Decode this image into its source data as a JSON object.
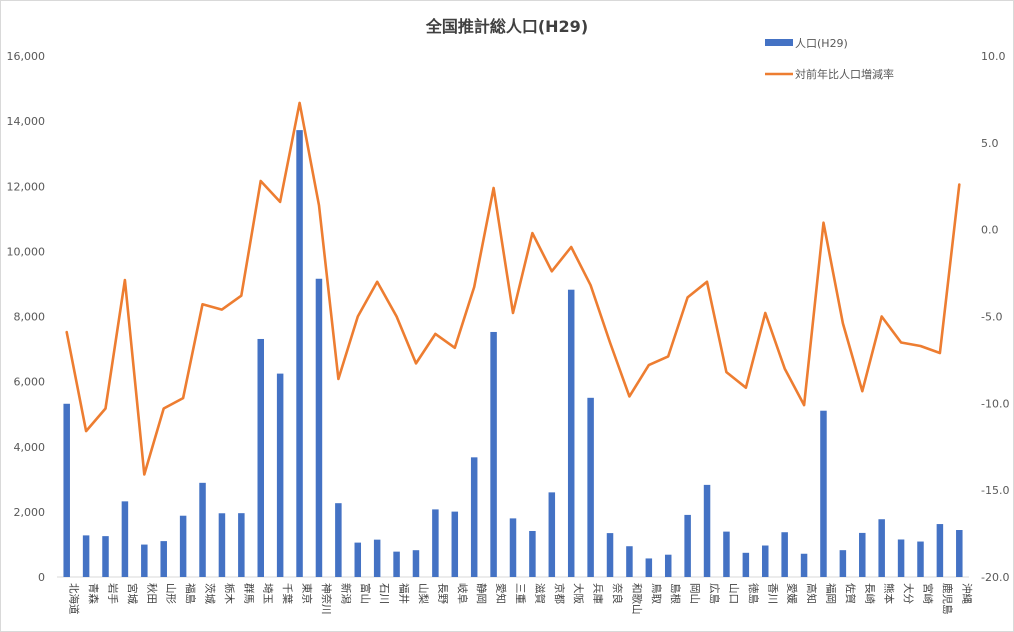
{
  "chart_data": {
    "type": "bar+line",
    "title": "全国推計総人口(H29)",
    "categories": [
      "北海道",
      "青森",
      "岩手",
      "宮城",
      "秋田",
      "山形",
      "福島",
      "茨城",
      "栃木",
      "群馬",
      "埼玉",
      "千葉",
      "東京",
      "神奈川",
      "新潟",
      "富山",
      "石川",
      "福井",
      "山梨",
      "長野",
      "岐阜",
      "静岡",
      "愛知",
      "三重",
      "滋賀",
      "京都",
      "大阪",
      "兵庫",
      "奈良",
      "和歌山",
      "鳥取",
      "島根",
      "岡山",
      "広島",
      "山口",
      "徳島",
      "香川",
      "愛媛",
      "高知",
      "福岡",
      "佐賀",
      "長崎",
      "熊本",
      "大分",
      "宮崎",
      "鹿児島",
      "沖縄"
    ],
    "series": [
      {
        "name": "人口(H29)",
        "kind": "bar",
        "axis": "left",
        "color": "#4472c4",
        "values": [
          5320,
          1278,
          1255,
          2323,
          996,
          1102,
          1882,
          2892,
          1957,
          1960,
          7310,
          6246,
          13724,
          9159,
          2267,
          1056,
          1147,
          779,
          823,
          2076,
          2008,
          3675,
          7525,
          1800,
          1413,
          2599,
          8823,
          5503,
          1348,
          945,
          570,
          685,
          1907,
          2829,
          1394,
          743,
          967,
          1375,
          714,
          5107,
          824,
          1354,
          1774,
          1152,
          1089,
          1626,
          1443
        ]
      },
      {
        "name": "対前年比人口増減率",
        "kind": "line",
        "axis": "right",
        "color": "#ed7d31",
        "values": [
          -5.9,
          -11.6,
          -10.3,
          -2.9,
          -14.1,
          -10.3,
          -9.7,
          -4.3,
          -4.6,
          -3.8,
          2.8,
          1.6,
          7.3,
          1.4,
          -8.6,
          -5.0,
          -3.0,
          -5.0,
          -7.7,
          -6.0,
          -6.8,
          -3.3,
          2.4,
          -4.8,
          -0.2,
          -2.4,
          -1.0,
          -3.2,
          -6.5,
          -9.6,
          -7.8,
          -7.3,
          -3.9,
          -3.0,
          -8.2,
          -9.1,
          -4.8,
          -8.0,
          -10.1,
          0.4,
          -5.4,
          -9.3,
          -5.0,
          -6.5,
          -6.7,
          -7.1,
          2.6
        ]
      }
    ],
    "y_left": {
      "ylim": [
        0,
        16000
      ],
      "ticks": [
        "0",
        "2,000",
        "4,000",
        "6,000",
        "8,000",
        "10,000",
        "12,000",
        "14,000",
        "16,000"
      ]
    },
    "y_right": {
      "ylim": [
        -20,
        10
      ],
      "ticks": [
        "-20.0",
        "-15.0",
        "-10.0",
        "-5.0",
        "0.0",
        "5.0",
        "10.0"
      ]
    },
    "grid": false,
    "legend_position": "top-right"
  }
}
